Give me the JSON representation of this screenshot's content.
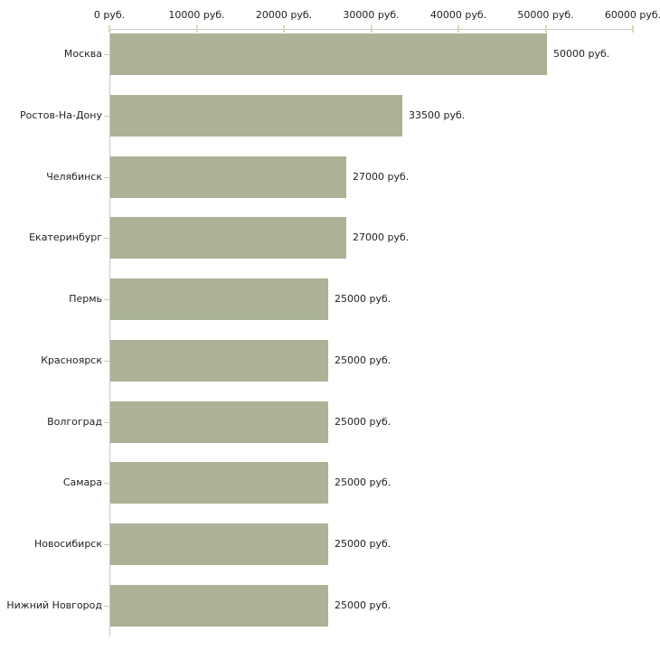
{
  "chart_data": {
    "type": "bar",
    "orientation": "horizontal",
    "title": "",
    "xlabel": "",
    "ylabel": "",
    "unit_suffix": " руб.",
    "categories": [
      "Москва",
      "Ростов-На-Дону",
      "Челябинск",
      "Екатеринбург",
      "Пермь",
      "Красноярск",
      "Волгоград",
      "Самара",
      "Новосибирск",
      "Нижний Новгород"
    ],
    "values": [
      50000,
      33500,
      27000,
      27000,
      25000,
      25000,
      25000,
      25000,
      25000,
      25000
    ],
    "value_labels": [
      "50000 руб.",
      "33500 руб.",
      "27000 руб.",
      "27000 руб.",
      "25000 руб.",
      "25000 руб.",
      "25000 руб.",
      "25000 руб.",
      "25000 руб.",
      "25000 руб."
    ],
    "x_ticks": [
      "0 руб.",
      "10000 руб.",
      "20000 руб.",
      "30000 руб.",
      "40000 руб.",
      "50000 руб.",
      "60000 руб."
    ],
    "x_tick_values": [
      0,
      10000,
      20000,
      30000,
      40000,
      50000,
      60000
    ],
    "xlim": [
      0,
      60000
    ],
    "grid": false,
    "legend": "none",
    "colors": {
      "bar": "#abb296",
      "axis": "#c8c8c8",
      "tick": "#d9d9bd",
      "text": "#1f1f1f",
      "background": "#ffffff"
    }
  }
}
